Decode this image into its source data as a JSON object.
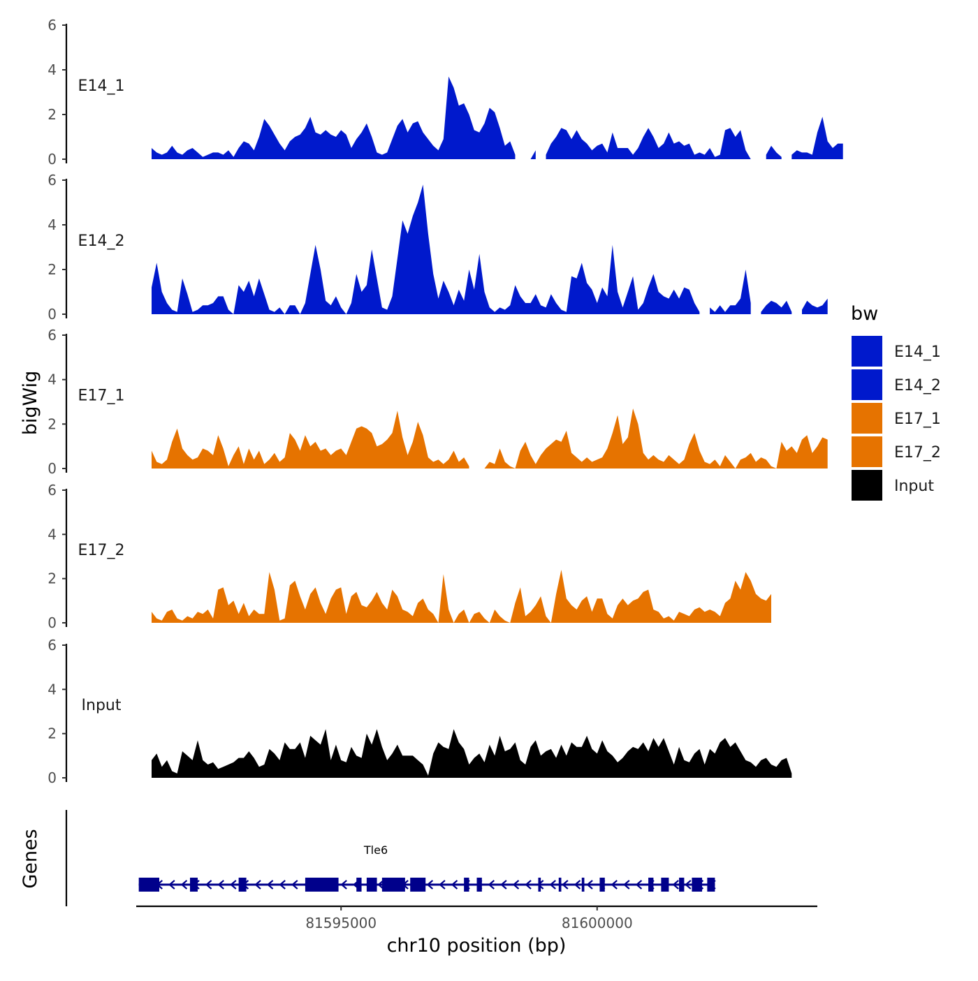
{
  "chart_data": {
    "type": "area",
    "xlabel": "chr10 position (bp)",
    "ylabel": "bigWig",
    "genes_label": "Genes",
    "xlim": [
      81591000,
      81604300
    ],
    "x_ticks": [
      81595000,
      81600000
    ],
    "x_tick_labels": [
      "81595000",
      "81600000"
    ],
    "ylim": [
      0,
      6
    ],
    "y_ticks": [
      0,
      2,
      4,
      6
    ],
    "y_tick_labels": [
      "0",
      "2",
      "4",
      "6"
    ],
    "legend": {
      "title": "bw",
      "entries": [
        {
          "label": "E14_1",
          "color": "#0019cc"
        },
        {
          "label": "E14_2",
          "color": "#0019cc"
        },
        {
          "label": "E17_1",
          "color": "#e67300"
        },
        {
          "label": "E17_2",
          "color": "#e67300"
        },
        {
          "label": "Input",
          "color": "#000000"
        }
      ]
    },
    "x_start": 81591300,
    "x_step": 100,
    "series": [
      {
        "name": "E14_1",
        "color": "#0019cc",
        "values": [
          0.5,
          0.3,
          0.2,
          0.3,
          0.6,
          0.3,
          0.2,
          0.4,
          0.5,
          0.3,
          0.1,
          0.2,
          0.3,
          0.3,
          0.2,
          0.4,
          0.1,
          0.5,
          0.8,
          0.7,
          0.4,
          1.0,
          1.8,
          1.5,
          1.1,
          0.7,
          0.4,
          0.8,
          1.0,
          1.1,
          1.4,
          1.9,
          1.2,
          1.1,
          1.3,
          1.1,
          1.0,
          1.3,
          1.1,
          0.5,
          0.9,
          1.2,
          1.6,
          1.0,
          0.3,
          0.2,
          0.3,
          0.9,
          1.5,
          1.8,
          1.2,
          1.6,
          1.7,
          1.2,
          0.9,
          0.6,
          0.4,
          0.9,
          3.7,
          3.2,
          2.4,
          2.5,
          2.0,
          1.3,
          1.2,
          1.6,
          2.3,
          2.1,
          1.4,
          0.6,
          0.8,
          0.2,
          null,
          null,
          0.0,
          0.4,
          null,
          0.2,
          0.7,
          1.0,
          1.4,
          1.3,
          0.9,
          1.3,
          0.9,
          0.7,
          0.4,
          0.6,
          0.7,
          0.3,
          1.2,
          0.5,
          0.5,
          0.5,
          0.2,
          0.5,
          1.0,
          1.4,
          1.0,
          0.5,
          0.7,
          1.2,
          0.7,
          0.8,
          0.6,
          0.7,
          0.2,
          0.3,
          0.2,
          0.5,
          0.1,
          0.2,
          1.3,
          1.4,
          1.0,
          1.3,
          0.4,
          0.0,
          null,
          null,
          0.2,
          0.6,
          0.3,
          0.1,
          null,
          0.2,
          0.4,
          0.3,
          0.3,
          0.2,
          1.2,
          1.9,
          0.8,
          0.5,
          0.7,
          0.7
        ]
      },
      {
        "name": "E14_2",
        "color": "#0019cc",
        "values": [
          1.2,
          2.3,
          1.0,
          0.5,
          0.2,
          0.1,
          1.6,
          0.9,
          0.1,
          0.2,
          0.4,
          0.4,
          0.5,
          0.8,
          0.8,
          0.2,
          0.0,
          1.3,
          1.0,
          1.5,
          0.8,
          1.6,
          0.9,
          0.2,
          0.1,
          0.3,
          0.0,
          0.4,
          0.4,
          0.0,
          0.5,
          1.8,
          3.1,
          2.0,
          0.6,
          0.4,
          0.8,
          0.3,
          0.0,
          0.5,
          1.8,
          1.0,
          1.3,
          2.9,
          1.6,
          0.3,
          0.2,
          0.8,
          2.5,
          4.2,
          3.6,
          4.4,
          5.0,
          5.8,
          3.6,
          1.8,
          0.7,
          1.5,
          1.0,
          0.4,
          1.1,
          0.6,
          2.0,
          1.1,
          2.7,
          1.0,
          0.3,
          0.1,
          0.3,
          0.2,
          0.4,
          1.3,
          0.8,
          0.5,
          0.5,
          0.9,
          0.4,
          0.3,
          0.9,
          0.5,
          0.2,
          0.1,
          1.7,
          1.6,
          2.3,
          1.4,
          1.1,
          0.5,
          1.2,
          0.8,
          3.1,
          1.0,
          0.3,
          1.0,
          1.7,
          0.2,
          0.5,
          1.2,
          1.8,
          1.0,
          0.8,
          0.7,
          1.1,
          0.7,
          1.2,
          1.1,
          0.5,
          0.1,
          null,
          0.3,
          0.1,
          0.4,
          0.1,
          0.4,
          0.4,
          0.7,
          2.0,
          0.5,
          null,
          0.1,
          0.4,
          0.6,
          0.5,
          0.3,
          0.6,
          0.1,
          null,
          0.2,
          0.6,
          0.4,
          0.3,
          0.4,
          0.7
        ]
      },
      {
        "name": "E17_1",
        "color": "#e67300",
        "values": [
          0.8,
          0.3,
          0.2,
          0.4,
          1.2,
          1.8,
          0.9,
          0.6,
          0.4,
          0.5,
          0.9,
          0.8,
          0.6,
          1.5,
          0.9,
          0.1,
          0.6,
          1.0,
          0.2,
          0.9,
          0.4,
          0.8,
          0.2,
          0.4,
          0.7,
          0.3,
          0.5,
          1.6,
          1.3,
          0.8,
          1.5,
          1.0,
          1.2,
          0.8,
          0.9,
          0.6,
          0.8,
          0.9,
          0.6,
          1.2,
          1.8,
          1.9,
          1.8,
          1.6,
          1.0,
          1.1,
          1.3,
          1.6,
          2.6,
          1.4,
          0.6,
          1.2,
          2.1,
          1.5,
          0.5,
          0.3,
          0.4,
          0.2,
          0.4,
          0.8,
          0.3,
          0.5,
          0.1,
          null,
          null,
          0.0,
          0.3,
          0.2,
          0.9,
          0.3,
          0.1,
          0.0,
          0.8,
          1.2,
          0.6,
          0.2,
          0.6,
          0.9,
          1.1,
          1.3,
          1.2,
          1.7,
          0.7,
          0.5,
          0.3,
          0.5,
          0.3,
          0.4,
          0.5,
          0.9,
          1.6,
          2.4,
          1.1,
          1.4,
          2.7,
          2.0,
          0.7,
          0.4,
          0.6,
          0.4,
          0.3,
          0.6,
          0.4,
          0.2,
          0.4,
          1.1,
          1.6,
          0.8,
          0.3,
          0.2,
          0.4,
          0.1,
          0.6,
          0.3,
          0.0,
          0.4,
          0.5,
          0.7,
          0.3,
          0.5,
          0.4,
          0.1,
          0.0,
          1.2,
          0.8,
          1.0,
          0.7,
          1.3,
          1.5,
          0.7,
          1.0,
          1.4,
          1.3
        ]
      },
      {
        "name": "E17_2",
        "color": "#e67300",
        "values": [
          0.5,
          0.2,
          0.1,
          0.5,
          0.6,
          0.2,
          0.1,
          0.3,
          0.2,
          0.5,
          0.4,
          0.6,
          0.2,
          1.5,
          1.6,
          0.8,
          1.0,
          0.4,
          0.9,
          0.3,
          0.6,
          0.4,
          0.4,
          2.3,
          1.5,
          0.1,
          0.2,
          1.7,
          1.9,
          1.2,
          0.6,
          1.3,
          1.6,
          0.9,
          0.4,
          1.1,
          1.5,
          1.6,
          0.4,
          1.2,
          1.4,
          0.8,
          0.7,
          1.0,
          1.4,
          0.9,
          0.6,
          1.5,
          1.2,
          0.6,
          0.5,
          0.3,
          0.9,
          1.1,
          0.6,
          0.4,
          0.0,
          2.2,
          0.6,
          0.0,
          0.4,
          0.6,
          0.0,
          0.4,
          0.5,
          0.2,
          0.0,
          0.6,
          0.3,
          0.1,
          0.0,
          0.9,
          1.6,
          0.3,
          0.5,
          0.8,
          1.2,
          0.3,
          0.0,
          1.3,
          2.4,
          1.1,
          0.8,
          0.6,
          1.0,
          1.2,
          0.5,
          1.1,
          1.1,
          0.4,
          0.2,
          0.8,
          1.1,
          0.8,
          1.0,
          1.1,
          1.4,
          1.5,
          0.6,
          0.5,
          0.2,
          0.3,
          0.1,
          0.5,
          0.4,
          0.3,
          0.6,
          0.7,
          0.5,
          0.6,
          0.5,
          0.3,
          0.9,
          1.1,
          1.9,
          1.5,
          2.3,
          1.9,
          1.3,
          1.1,
          1.0,
          1.3
        ]
      },
      {
        "name": "Input",
        "color": "#000000",
        "values": [
          0.8,
          1.1,
          0.5,
          0.8,
          0.3,
          0.2,
          1.2,
          1.0,
          0.8,
          1.7,
          0.8,
          0.6,
          0.7,
          0.4,
          0.5,
          0.6,
          0.7,
          0.9,
          0.9,
          1.2,
          0.9,
          0.5,
          0.6,
          1.3,
          1.1,
          0.8,
          1.6,
          1.3,
          1.3,
          1.6,
          0.9,
          1.9,
          1.7,
          1.5,
          2.2,
          0.8,
          1.5,
          0.8,
          0.7,
          1.4,
          1.0,
          0.9,
          2.0,
          1.5,
          2.2,
          1.4,
          0.8,
          1.1,
          1.5,
          1.0,
          1.0,
          1.0,
          0.8,
          0.6,
          0.1,
          1.1,
          1.6,
          1.4,
          1.3,
          2.2,
          1.6,
          1.3,
          0.6,
          0.9,
          1.1,
          0.7,
          1.5,
          1.0,
          1.9,
          1.2,
          1.3,
          1.6,
          0.8,
          0.6,
          1.4,
          1.7,
          1.0,
          1.2,
          1.3,
          0.9,
          1.5,
          1.0,
          1.6,
          1.4,
          1.4,
          1.9,
          1.3,
          1.1,
          1.7,
          1.2,
          1.0,
          0.7,
          0.9,
          1.2,
          1.4,
          1.3,
          1.6,
          1.2,
          1.8,
          1.4,
          1.8,
          1.2,
          0.6,
          1.4,
          0.8,
          0.7,
          1.1,
          1.3,
          0.6,
          1.3,
          1.1,
          1.6,
          1.8,
          1.4,
          1.6,
          1.2,
          0.8,
          0.7,
          0.5,
          0.8,
          0.9,
          0.6,
          0.5,
          0.8,
          0.9,
          0.2
        ]
      }
    ],
    "gene": {
      "name": "Tle6",
      "strand": "-",
      "start": 81591050,
      "end": 81602300,
      "exons": [
        [
          81591050,
          81591450
        ],
        [
          81592050,
          81592200
        ],
        [
          81593000,
          81593150
        ],
        [
          81594300,
          81594950
        ],
        [
          81595300,
          81595400
        ],
        [
          81595500,
          81595700
        ],
        [
          81595800,
          81596250
        ],
        [
          81596350,
          81596650
        ],
        [
          81597400,
          81597500
        ],
        [
          81597650,
          81597750
        ],
        [
          81598850,
          81598900
        ],
        [
          81599250,
          81599300
        ],
        [
          81599700,
          81599750
        ],
        [
          81600050,
          81600150
        ],
        [
          81601000,
          81601100
        ],
        [
          81601250,
          81601400
        ],
        [
          81601600,
          81601700
        ],
        [
          81601850,
          81602050
        ],
        [
          81602150,
          81602300
        ]
      ]
    }
  }
}
